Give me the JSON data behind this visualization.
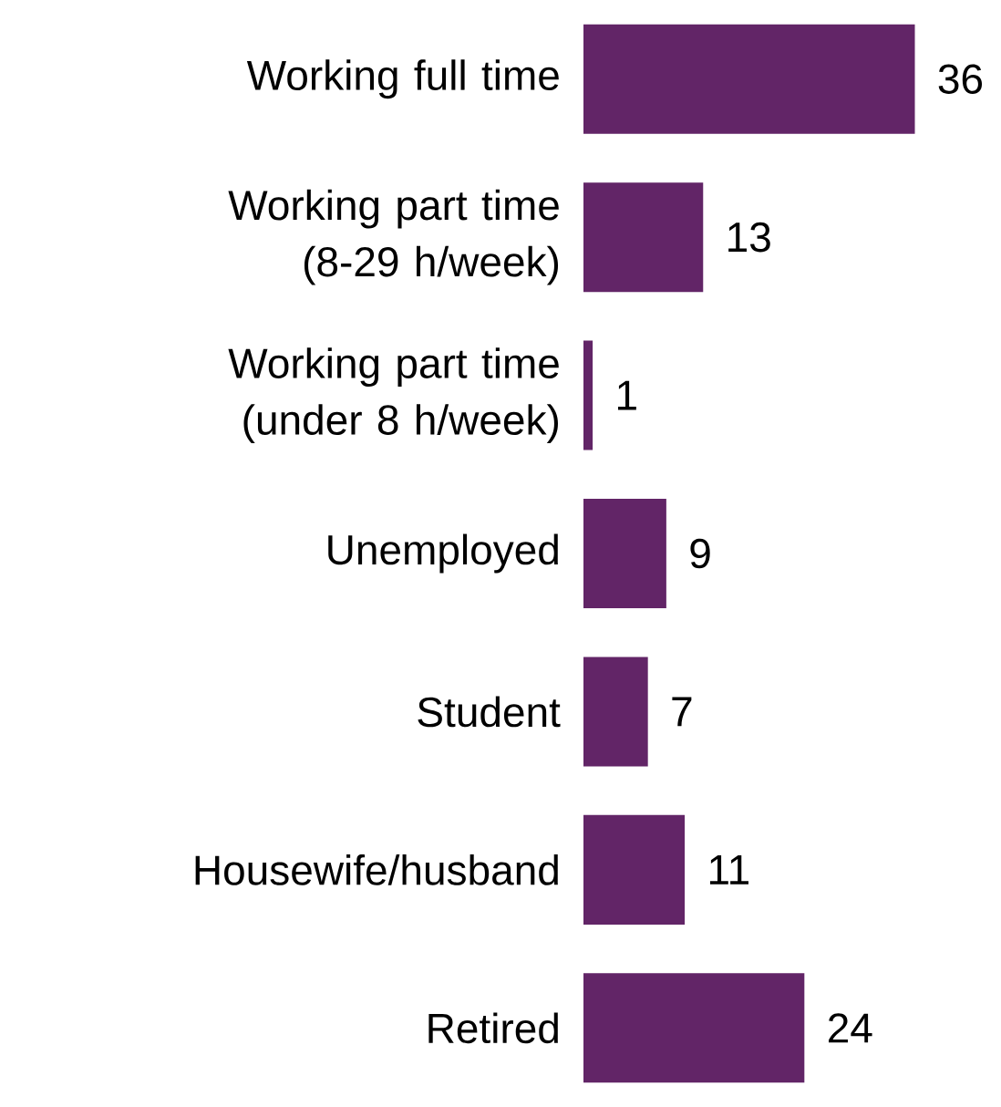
{
  "chart_data": {
    "type": "bar",
    "orientation": "horizontal",
    "categories": [
      "Working full time",
      "Working part time (8-29 h/week)",
      "Working part time (under 8 h/week)",
      "Unemployed",
      "Student",
      "Housewife/husband",
      "Retired"
    ],
    "values": [
      36,
      13,
      1,
      9,
      7,
      11,
      24
    ],
    "color": "#622567",
    "data_labels": true
  }
}
